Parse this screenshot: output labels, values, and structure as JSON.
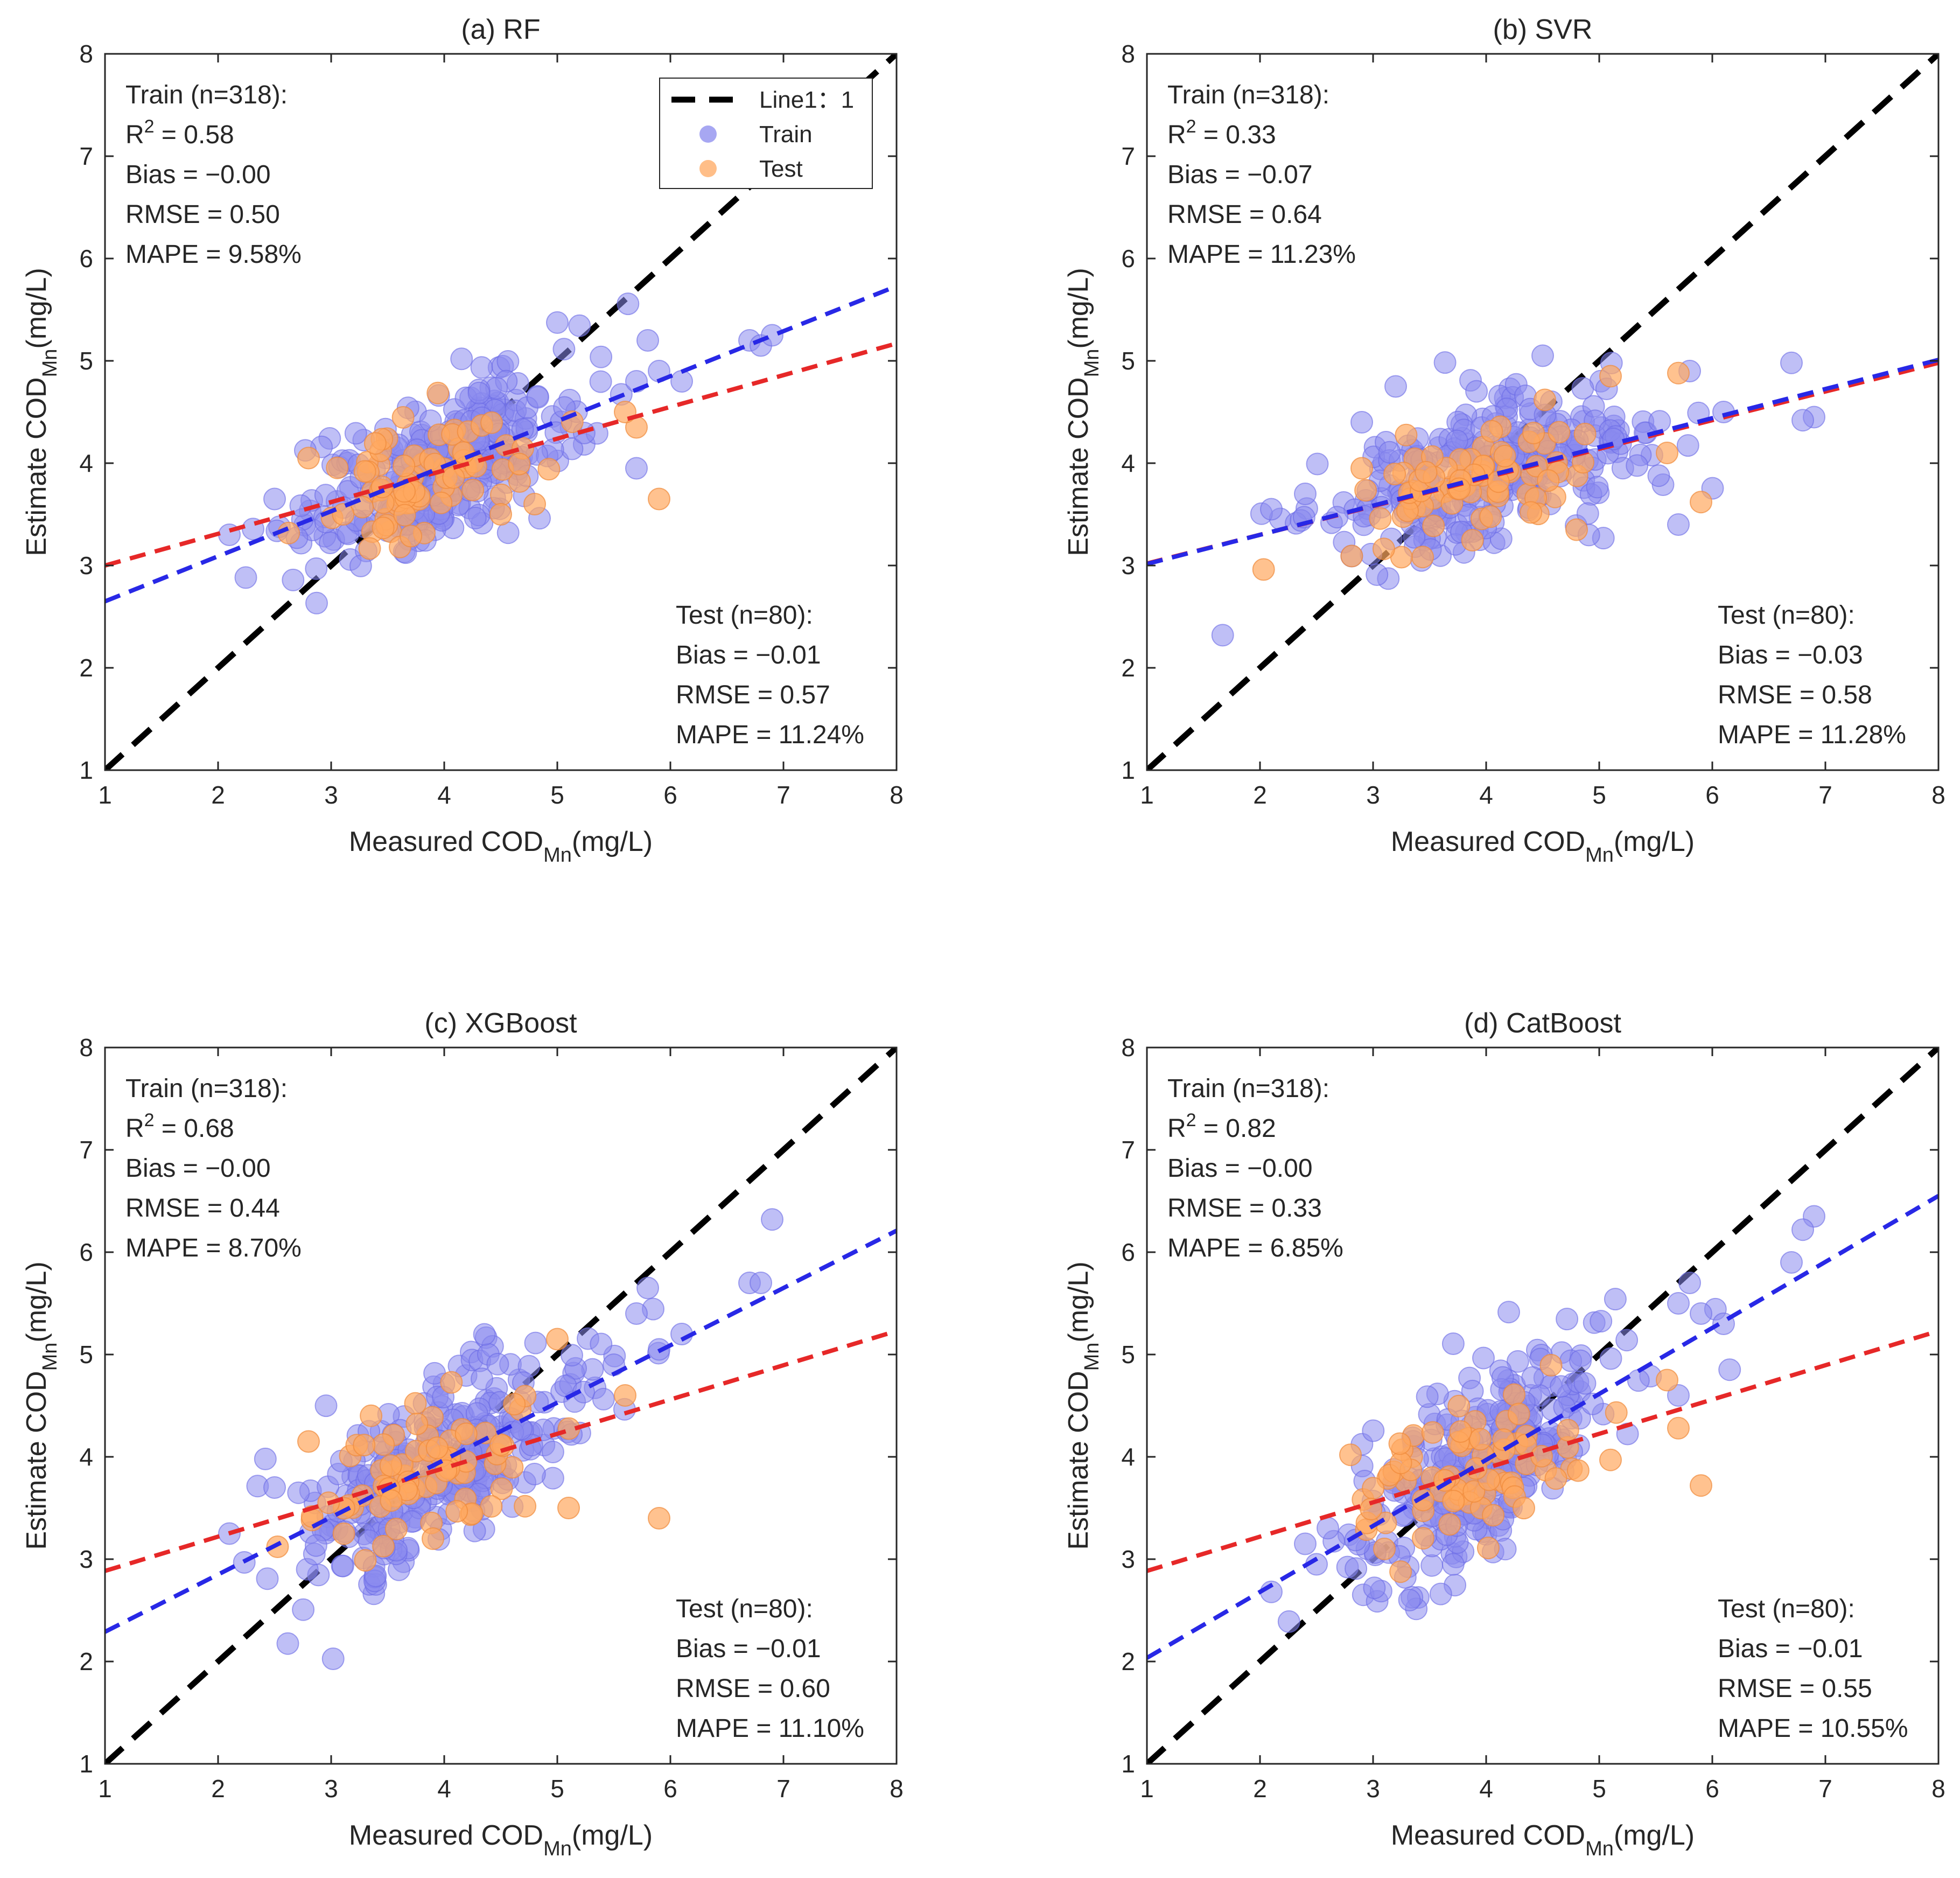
{
  "figure_title": "",
  "chart_data": [
    {
      "type": "scatter",
      "title": "(a) RF",
      "xlabel": {
        "main": "Measured COD",
        "sub": "Mn",
        "unit": "(mg/L)"
      },
      "ylabel": {
        "main": "Estimate COD",
        "sub": "Mn",
        "unit": "(mg/L)"
      },
      "xlim": [
        1,
        8
      ],
      "ylim": [
        1,
        8
      ],
      "xticks": [
        "1",
        "2",
        "3",
        "4",
        "5",
        "6",
        "7",
        "8"
      ],
      "yticks": [
        "1",
        "2",
        "3",
        "4",
        "5",
        "6",
        "7",
        "8"
      ],
      "train_stats": {
        "header": "Train (n=318):",
        "r2_label": "R",
        "r2_sup": "2",
        "r2_value": " = 0.58",
        "bias": "Bias = −0.00",
        "rmse": "RMSE = 0.50",
        "mape": "MAPE = 9.58%"
      },
      "test_stats": {
        "header": "Test (n=80):",
        "bias": "Bias = −0.01",
        "rmse": "RMSE = 0.57",
        "mape": "MAPE = 11.24%"
      },
      "identity_line": {
        "name": "Line1：1",
        "points": [
          [
            1,
            1
          ],
          [
            8,
            8
          ]
        ],
        "color": "#000000"
      },
      "train_fit": {
        "slope": 0.44,
        "intercept": 2.21,
        "color": "#2828e6"
      },
      "test_fit": {
        "slope": 0.31,
        "intercept": 2.69,
        "color": "#e62828"
      },
      "train_center": [
        3.95,
        3.95
      ],
      "test_center": [
        3.85,
        3.86
      ],
      "train_spread": [
        0.62,
        0.36
      ],
      "test_spread": [
        0.52,
        0.3
      ],
      "train_extra": [
        [
          6.7,
          5.2
        ],
        [
          6.8,
          5.15
        ],
        [
          6.9,
          5.25
        ],
        [
          5.8,
          5.2
        ],
        [
          5.7,
          4.8
        ],
        [
          6.1,
          4.8
        ],
        [
          5.7,
          3.95
        ],
        [
          2.1,
          3.3
        ],
        [
          2.5,
          3.65
        ],
        [
          5.9,
          4.9
        ]
      ],
      "test_extra": [
        [
          5.9,
          3.65
        ],
        [
          5.7,
          4.35
        ],
        [
          2.8,
          4.05
        ],
        [
          4.5,
          3.5
        ],
        [
          4.8,
          3.6
        ],
        [
          5.6,
          4.5
        ]
      ]
    },
    {
      "type": "scatter",
      "title": "(b) SVR",
      "xlabel": {
        "main": "Measured COD",
        "sub": "Mn",
        "unit": "(mg/L)"
      },
      "ylabel": {
        "main": "Estimate COD",
        "sub": "Mn",
        "unit": "(mg/L)"
      },
      "xlim": [
        1,
        8
      ],
      "ylim": [
        1,
        8
      ],
      "xticks": [
        "1",
        "2",
        "3",
        "4",
        "5",
        "6",
        "7",
        "8"
      ],
      "yticks": [
        "1",
        "2",
        "3",
        "4",
        "5",
        "6",
        "7",
        "8"
      ],
      "train_stats": {
        "header": "Train (n=318):",
        "r2_label": "R",
        "r2_sup": "2",
        "r2_value": " = 0.33",
        "bias": "Bias = −0.07",
        "rmse": "RMSE = 0.64",
        "mape": "MAPE = 11.23%"
      },
      "test_stats": {
        "header": "Test (n=80):",
        "bias": "Bias = −0.03",
        "rmse": "RMSE = 0.58",
        "mape": "MAPE = 11.28%"
      },
      "identity_line": {
        "name": "Line1：1",
        "points": [
          [
            1,
            1
          ],
          [
            8,
            8
          ]
        ],
        "color": "#000000"
      },
      "train_fit": {
        "slope": 0.285,
        "intercept": 2.73,
        "color": "#2828e6"
      },
      "test_fit": {
        "slope": 0.28,
        "intercept": 2.74,
        "color": "#e62828"
      },
      "train_center": [
        3.95,
        3.85
      ],
      "test_center": [
        3.85,
        3.8
      ],
      "train_spread": [
        0.7,
        0.33
      ],
      "test_spread": [
        0.55,
        0.28
      ],
      "train_extra": [
        [
          6.7,
          4.98
        ],
        [
          6.9,
          4.45
        ],
        [
          6.8,
          4.42
        ],
        [
          5.7,
          3.4
        ],
        [
          2.1,
          3.55
        ],
        [
          2.4,
          3.7
        ],
        [
          3.2,
          4.75
        ],
        [
          2.9,
          4.4
        ],
        [
          4.5,
          5.05
        ],
        [
          5.8,
          4.9
        ],
        [
          6.1,
          4.5
        ]
      ],
      "test_extra": [
        [
          5.9,
          3.62
        ],
        [
          5.6,
          4.1
        ],
        [
          5.7,
          4.88
        ],
        [
          5.1,
          4.85
        ],
        [
          2.9,
          3.95
        ],
        [
          4.8,
          3.35
        ]
      ]
    },
    {
      "type": "scatter",
      "title": "(c) XGBoost",
      "xlabel": {
        "main": "Measured COD",
        "sub": "Mn",
        "unit": "(mg/L)"
      },
      "ylabel": {
        "main": "Estimate COD",
        "sub": "Mn",
        "unit": "(mg/L)"
      },
      "xlim": [
        1,
        8
      ],
      "ylim": [
        1,
        8
      ],
      "xticks": [
        "1",
        "2",
        "3",
        "4",
        "5",
        "6",
        "7",
        "8"
      ],
      "yticks": [
        "1",
        "2",
        "3",
        "4",
        "5",
        "6",
        "7",
        "8"
      ],
      "train_stats": {
        "header": "Train (n=318):",
        "r2_label": "R",
        "r2_sup": "2",
        "r2_value": " = 0.68",
        "bias": "Bias = −0.00",
        "rmse": "RMSE = 0.44",
        "mape": "MAPE = 8.70%"
      },
      "test_stats": {
        "header": "Test (n=80):",
        "bias": "Bias = −0.01",
        "rmse": "RMSE = 0.60",
        "mape": "MAPE = 11.10%"
      },
      "identity_line": {
        "name": "Line1：1",
        "points": [
          [
            1,
            1
          ],
          [
            8,
            8
          ]
        ],
        "color": "#000000"
      },
      "train_fit": {
        "slope": 0.56,
        "intercept": 1.73,
        "color": "#2828e6"
      },
      "test_fit": {
        "slope": 0.335,
        "intercept": 2.55,
        "color": "#e62828"
      },
      "train_center": [
        3.95,
        3.95
      ],
      "test_center": [
        3.85,
        3.85
      ],
      "train_spread": [
        0.62,
        0.4
      ],
      "test_spread": [
        0.52,
        0.35
      ],
      "train_extra": [
        [
          6.9,
          6.32
        ],
        [
          6.7,
          5.7
        ],
        [
          6.8,
          5.7
        ],
        [
          5.8,
          5.65
        ],
        [
          5.7,
          5.4
        ],
        [
          5.9,
          5.05
        ],
        [
          6.1,
          5.2
        ],
        [
          2.1,
          3.25
        ],
        [
          2.5,
          3.7
        ],
        [
          5.5,
          4.9
        ]
      ],
      "test_extra": [
        [
          5.9,
          3.4
        ],
        [
          5.1,
          3.5
        ],
        [
          5.0,
          5.15
        ],
        [
          5.6,
          4.6
        ],
        [
          2.8,
          4.15
        ],
        [
          3.9,
          3.2
        ]
      ]
    },
    {
      "type": "scatter",
      "title": "(d) CatBoost",
      "xlabel": {
        "main": "Measured COD",
        "sub": "Mn",
        "unit": "(mg/L)"
      },
      "ylabel": {
        "main": "Estimate COD",
        "sub": "Mn",
        "unit": "(mg/L)"
      },
      "xlim": [
        1,
        8
      ],
      "ylim": [
        1,
        8
      ],
      "xticks": [
        "1",
        "2",
        "3",
        "4",
        "5",
        "6",
        "7",
        "8"
      ],
      "yticks": [
        "1",
        "2",
        "3",
        "4",
        "5",
        "6",
        "7",
        "8"
      ],
      "train_stats": {
        "header": "Train (n=318):",
        "r2_label": "R",
        "r2_sup": "2",
        "r2_value": " = 0.82",
        "bias": "Bias = −0.00",
        "rmse": "RMSE = 0.33",
        "mape": "MAPE = 6.85%"
      },
      "test_stats": {
        "header": "Test (n=80):",
        "bias": "Bias = −0.01",
        "rmse": "RMSE = 0.55",
        "mape": "MAPE = 10.55%"
      },
      "identity_line": {
        "name": "Line1：1",
        "points": [
          [
            1,
            1
          ],
          [
            8,
            8
          ]
        ],
        "color": "#000000"
      },
      "train_fit": {
        "slope": 0.645,
        "intercept": 1.39,
        "color": "#2828e6"
      },
      "test_fit": {
        "slope": 0.335,
        "intercept": 2.55,
        "color": "#e62828"
      },
      "train_center": [
        3.95,
        3.95
      ],
      "test_center": [
        3.85,
        3.85
      ],
      "train_spread": [
        0.62,
        0.45
      ],
      "test_spread": [
        0.52,
        0.35
      ],
      "train_extra": [
        [
          6.9,
          6.35
        ],
        [
          6.8,
          6.22
        ],
        [
          6.7,
          5.9
        ],
        [
          5.8,
          5.7
        ],
        [
          5.7,
          5.5
        ],
        [
          5.9,
          5.4
        ],
        [
          6.1,
          5.3
        ],
        [
          2.1,
          2.68
        ],
        [
          2.5,
          2.95
        ],
        [
          5.7,
          4.6
        ],
        [
          2.4,
          3.15
        ]
      ],
      "test_extra": [
        [
          5.9,
          3.72
        ],
        [
          5.7,
          4.28
        ],
        [
          5.1,
          3.97
        ],
        [
          2.8,
          4.02
        ],
        [
          3.1,
          3.1
        ],
        [
          5.6,
          4.75
        ]
      ]
    }
  ],
  "legend": {
    "entries": [
      {
        "label": "Line1：1",
        "kind": "dashed-line",
        "color": "#000000"
      },
      {
        "label": "Train",
        "kind": "marker",
        "color": "#8a8aee"
      },
      {
        "label": "Test",
        "kind": "marker",
        "color": "#ffa860"
      }
    ],
    "placement": "top-right of panel (a)"
  },
  "marker_colors": {
    "train_fill": "#8a8aee",
    "train_edge": "#6a6ae6",
    "test_fill": "#ffa860",
    "test_edge": "#f08a3a"
  }
}
